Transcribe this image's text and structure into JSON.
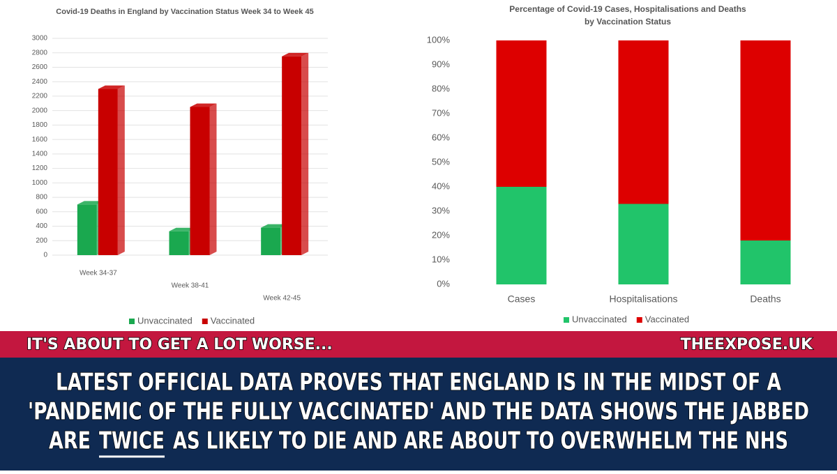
{
  "chart_data": [
    {
      "type": "bar3d",
      "title": "Covid-19 Deaths in England by Vaccination Status Week 34 to Week 45",
      "categories": [
        "Week 34-37",
        "Week 38-41",
        "Week 42-45"
      ],
      "series": [
        {
          "name": "Unvaccinated",
          "color": "#1aa84f",
          "values": [
            700,
            330,
            380
          ]
        },
        {
          "name": "Vaccinated",
          "color": "#c80000",
          "values": [
            2300,
            2050,
            2750
          ]
        }
      ],
      "ylim": [
        0,
        3000
      ],
      "yticks": [
        0,
        200,
        400,
        600,
        800,
        1000,
        1200,
        1400,
        1600,
        1800,
        2000,
        2200,
        2400,
        2600,
        2800,
        3000
      ],
      "grid": true,
      "legend": "bottom"
    },
    {
      "type": "stacked_bar",
      "title": [
        "Percentage of Covid-19 Cases, Hospitalisations and Deaths",
        "by Vaccination Status"
      ],
      "categories": [
        "Cases",
        "Hospitalisations",
        "Deaths"
      ],
      "series": [
        {
          "name": "Unvaccinated",
          "color": "#21c46a",
          "values": [
            40,
            33,
            18
          ]
        },
        {
          "name": "Vaccinated",
          "color": "#dd0000",
          "values": [
            60,
            67,
            82
          ]
        }
      ],
      "ylim": [
        0,
        100
      ],
      "yticks": [
        {
          "value": 0,
          "label": "0%"
        },
        {
          "value": 10,
          "label": "10%"
        },
        {
          "value": 20,
          "label": "20%"
        },
        {
          "value": 30,
          "label": "30%"
        },
        {
          "value": 40,
          "label": "40%"
        },
        {
          "value": 50,
          "label": "50%"
        },
        {
          "value": 60,
          "label": "60%"
        },
        {
          "value": 70,
          "label": "70%"
        },
        {
          "value": 80,
          "label": "80%"
        },
        {
          "value": 90,
          "label": "90%"
        },
        {
          "value": 100,
          "label": "100%"
        }
      ],
      "grid": false,
      "legend": "bottom"
    }
  ],
  "banner": {
    "tagline": "IT'S ABOUT TO GET A LOT WORSE...",
    "site": "THEEXPOSE.UK",
    "headline": [
      "LATEST OFFICIAL DATA PROVES THAT ENGLAND IS IN THE MIDST OF A",
      "'PANDEMIC OF THE FULLY VACCINATED' AND THE DATA SHOWS THE JABBED"
    ],
    "headline_last": [
      "ARE",
      "TWICE",
      "AS LIKELY TO DIE AND ARE ABOUT TO OVERWHELM THE NHS"
    ]
  }
}
